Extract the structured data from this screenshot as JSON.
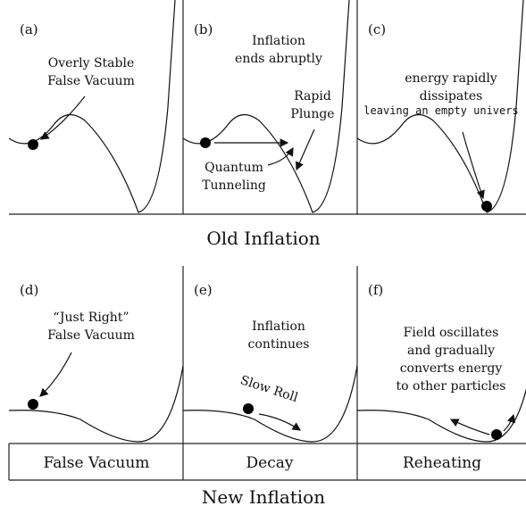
{
  "panels": [
    {
      "tag": "(a)",
      "notes": [
        "Overly Stable",
        "False Vacuum"
      ]
    },
    {
      "tag": "(b)",
      "notes": [
        "Inflation",
        "ends abruptly",
        "Rapid",
        "Plunge",
        "Quantum",
        "Tunneling"
      ]
    },
    {
      "tag": "(c)",
      "notes": [
        "energy rapidly",
        "dissipates",
        "leaving an empty univers"
      ]
    },
    {
      "tag": "(d)",
      "notes": [
        "“Just Right”",
        "False Vacuum"
      ]
    },
    {
      "tag": "(e)",
      "notes": [
        "Inflation",
        "continues",
        "Slow Roll"
      ]
    },
    {
      "tag": "(f)",
      "notes": [
        "Field oscillates",
        "and gradually",
        "converts energy",
        "to other particles"
      ]
    }
  ],
  "titles": [
    "Old Inflation",
    "New Inflation"
  ],
  "stage_labels": [
    "False Vacuum",
    "Decay",
    "Reheating"
  ]
}
